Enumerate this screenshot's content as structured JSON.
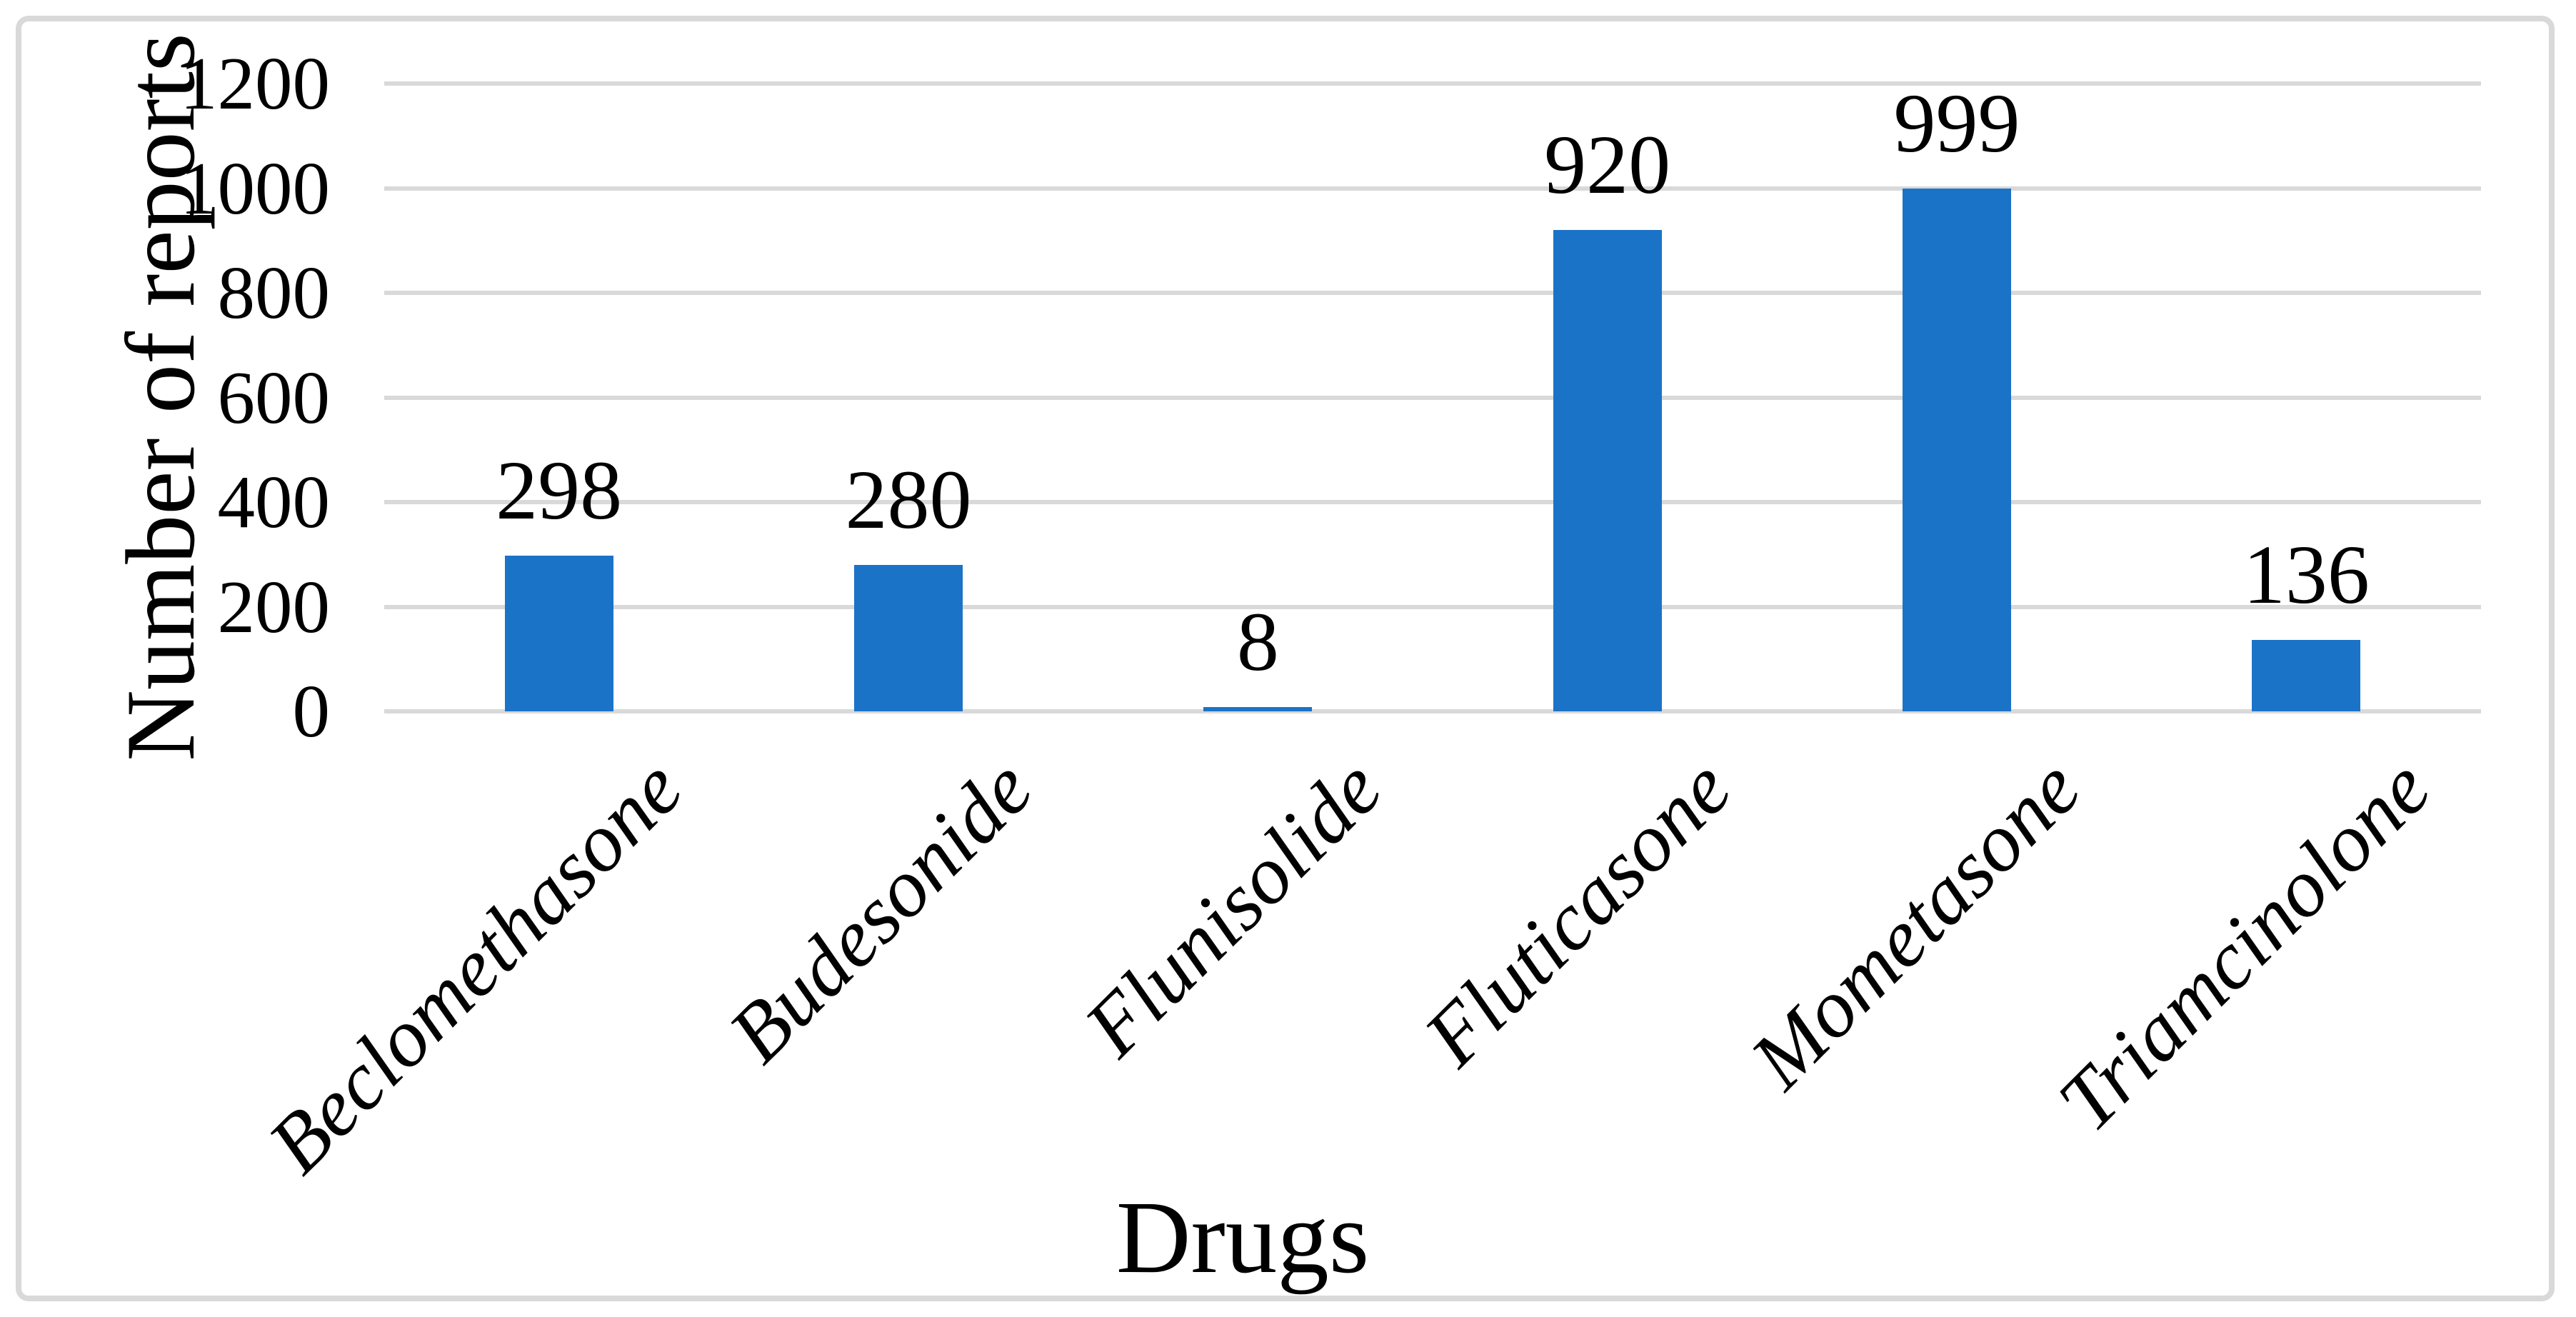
{
  "figure": {
    "background_color": "#FFFFFF",
    "frame_border_color": "#D9D9D9"
  },
  "chart_data": {
    "type": "bar",
    "title": "",
    "xlabel": "Drugs",
    "ylabel": "Number of reports",
    "categories": [
      "Beclomethasone",
      "Budesonide",
      "Flunisolide",
      "Fluticasone",
      "Mometasone",
      "Triamcinolone"
    ],
    "values": [
      298,
      280,
      8,
      920,
      999,
      136
    ],
    "data_labels": [
      "298",
      "280",
      "8",
      "920",
      "999",
      "136"
    ],
    "ylim": [
      0,
      1200
    ],
    "ytick_step": 200,
    "yticks": [
      0,
      200,
      400,
      600,
      800,
      1000,
      1200
    ],
    "grid": "horizontal-only",
    "legend": "none",
    "bar_color": "#1B73C8",
    "gridline_color": "#D9D9D9",
    "text_color": "#000000",
    "category_label_rotation_degrees": 45,
    "data_label_position": "outside-end"
  }
}
